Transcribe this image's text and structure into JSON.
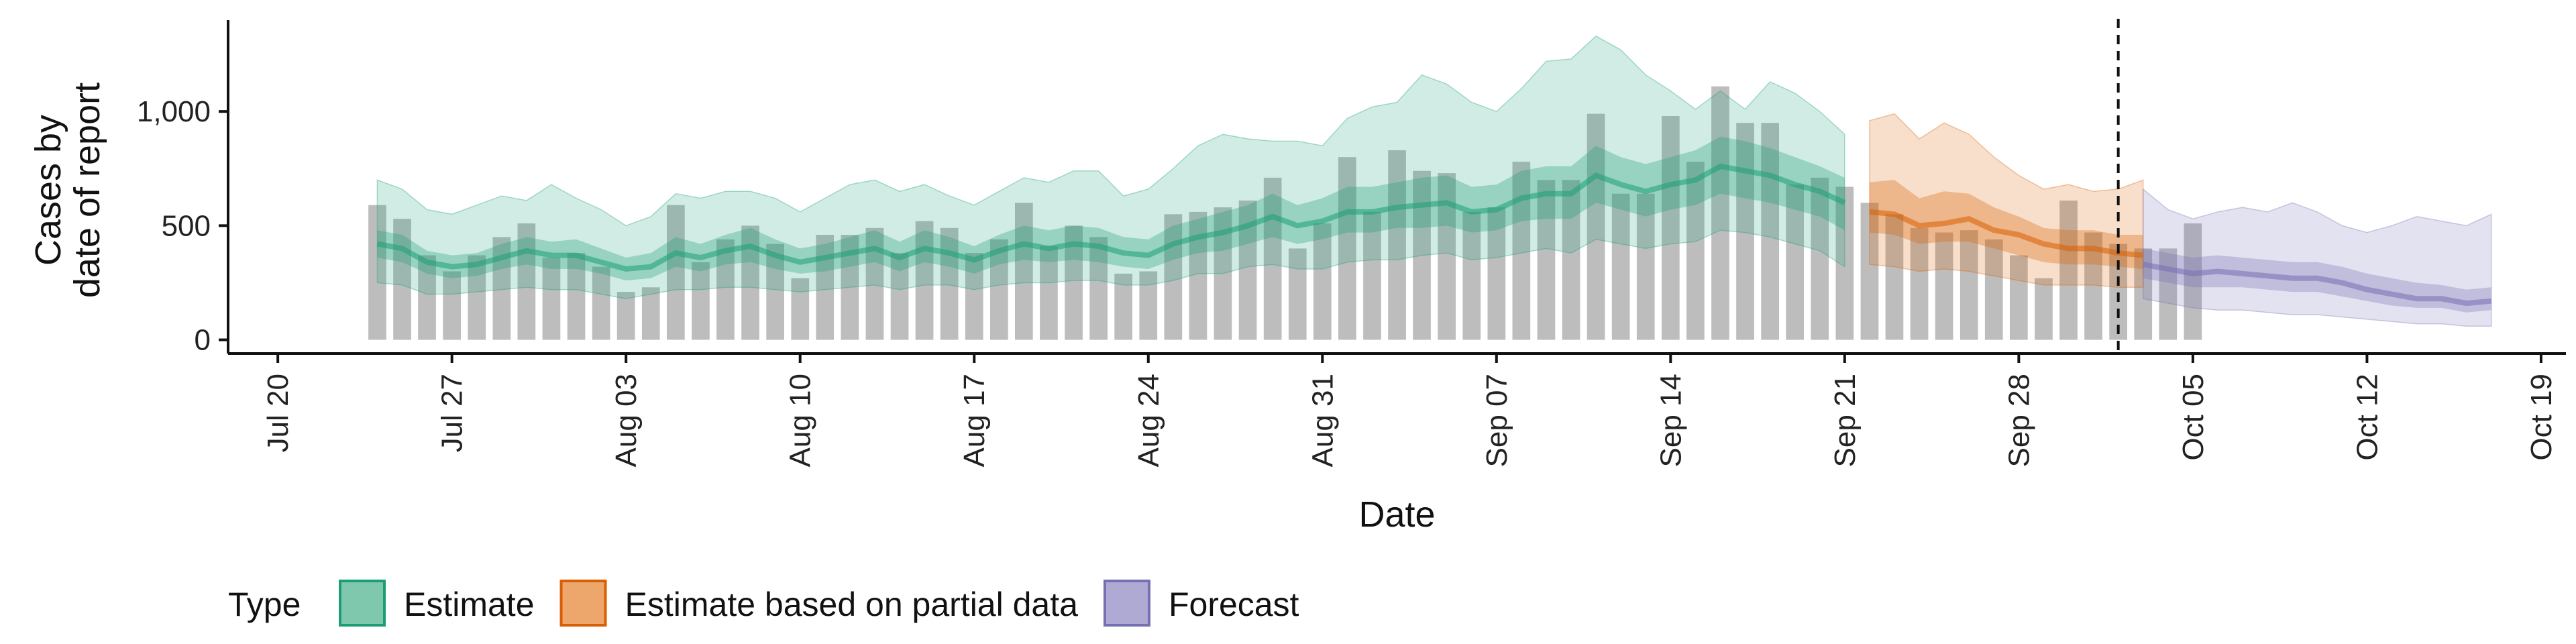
{
  "chart_data": {
    "type": "bar",
    "xlabel": "Date",
    "ylabel": [
      "Cases by",
      "date of report"
    ],
    "x_range": [
      "2020-07-18",
      "2020-10-20"
    ],
    "ylim": [
      -60,
      1400
    ],
    "x_ticks": [
      {
        "date": "2020-07-20",
        "label": "Jul 20"
      },
      {
        "date": "2020-07-27",
        "label": "Jul 27"
      },
      {
        "date": "2020-08-03",
        "label": "Aug 03"
      },
      {
        "date": "2020-08-10",
        "label": "Aug 10"
      },
      {
        "date": "2020-08-17",
        "label": "Aug 17"
      },
      {
        "date": "2020-08-24",
        "label": "Aug 24"
      },
      {
        "date": "2020-08-31",
        "label": "Aug 31"
      },
      {
        "date": "2020-09-07",
        "label": "Sep 07"
      },
      {
        "date": "2020-09-14",
        "label": "Sep 14"
      },
      {
        "date": "2020-09-21",
        "label": "Sep 21"
      },
      {
        "date": "2020-09-28",
        "label": "Sep 28"
      },
      {
        "date": "2020-10-05",
        "label": "Oct 05"
      },
      {
        "date": "2020-10-12",
        "label": "Oct 12"
      },
      {
        "date": "2020-10-19",
        "label": "Oct 19"
      }
    ],
    "y_ticks": [
      {
        "value": 0,
        "label": "0"
      },
      {
        "value": 500,
        "label": "500"
      },
      {
        "value": 1000,
        "label": "1,000"
      }
    ],
    "vline_date": "2020-10-02",
    "bars": {
      "start_date": "2020-07-24",
      "values": [
        590,
        530,
        370,
        300,
        370,
        450,
        510,
        360,
        380,
        320,
        210,
        230,
        590,
        340,
        440,
        500,
        420,
        270,
        460,
        460,
        490,
        380,
        520,
        490,
        380,
        440,
        600,
        410,
        500,
        450,
        290,
        300,
        550,
        560,
        580,
        610,
        710,
        400,
        510,
        800,
        560,
        830,
        740,
        730,
        560,
        580,
        780,
        700,
        700,
        990,
        640,
        640,
        980,
        780,
        1110,
        950,
        950,
        680,
        710,
        670,
        600,
        550,
        490,
        470,
        480,
        440,
        370,
        270,
        610,
        470,
        420,
        400,
        400,
        510
      ]
    },
    "legend": {
      "title": "Type",
      "items": [
        {
          "label": "Estimate",
          "fill": "#7fc8ad",
          "stroke": "#1b9e77"
        },
        {
          "label": "Estimate based on partial data",
          "fill": "#eda66b",
          "stroke": "#d95f02"
        },
        {
          "label": "Forecast",
          "fill": "#aeaad3",
          "stroke": "#7570b3"
        }
      ]
    },
    "series": [
      {
        "name": "Estimate",
        "color": "#1b9e77",
        "start_date": "2020-07-24",
        "median": [
          420,
          400,
          340,
          320,
          330,
          360,
          390,
          370,
          370,
          340,
          310,
          320,
          380,
          360,
          390,
          410,
          370,
          340,
          360,
          380,
          400,
          360,
          400,
          380,
          350,
          390,
          420,
          400,
          420,
          410,
          380,
          370,
          420,
          450,
          470,
          500,
          540,
          500,
          520,
          560,
          560,
          580,
          590,
          600,
          560,
          570,
          620,
          640,
          640,
          720,
          680,
          650,
          680,
          700,
          760,
          740,
          720,
          680,
          650,
          600
        ],
        "upper90": [
          700,
          660,
          570,
          550,
          590,
          630,
          610,
          680,
          620,
          570,
          500,
          540,
          640,
          620,
          650,
          650,
          620,
          560,
          620,
          680,
          700,
          650,
          680,
          630,
          590,
          650,
          710,
          690,
          740,
          740,
          630,
          660,
          750,
          850,
          900,
          880,
          870,
          870,
          850,
          970,
          1020,
          1040,
          1160,
          1120,
          1040,
          1000,
          1100,
          1220,
          1230,
          1330,
          1270,
          1160,
          1090,
          1010,
          1090,
          1010,
          1130,
          1080,
          1000,
          900
        ],
        "lower90": [
          250,
          240,
          200,
          200,
          210,
          220,
          230,
          220,
          220,
          200,
          180,
          200,
          220,
          220,
          230,
          230,
          220,
          210,
          220,
          230,
          240,
          220,
          240,
          240,
          220,
          240,
          250,
          250,
          260,
          260,
          240,
          240,
          260,
          290,
          290,
          320,
          330,
          310,
          310,
          340,
          350,
          350,
          370,
          380,
          350,
          360,
          380,
          400,
          380,
          440,
          420,
          400,
          420,
          430,
          480,
          470,
          450,
          420,
          390,
          320
        ],
        "upper50": [
          480,
          460,
          390,
          370,
          380,
          420,
          450,
          430,
          440,
          400,
          360,
          380,
          450,
          420,
          460,
          490,
          440,
          400,
          420,
          450,
          480,
          430,
          480,
          450,
          410,
          460,
          500,
          480,
          500,
          490,
          450,
          440,
          500,
          530,
          560,
          590,
          640,
          590,
          620,
          670,
          670,
          690,
          710,
          720,
          670,
          680,
          740,
          760,
          760,
          850,
          800,
          770,
          800,
          830,
          890,
          870,
          840,
          800,
          760,
          710
        ],
        "lower50": [
          360,
          340,
          290,
          270,
          280,
          310,
          330,
          310,
          310,
          290,
          260,
          270,
          320,
          300,
          330,
          340,
          310,
          290,
          300,
          320,
          340,
          300,
          340,
          320,
          290,
          330,
          350,
          340,
          350,
          340,
          320,
          310,
          350,
          380,
          390,
          420,
          450,
          420,
          440,
          470,
          470,
          490,
          490,
          500,
          470,
          480,
          520,
          530,
          530,
          600,
          570,
          540,
          570,
          590,
          640,
          620,
          600,
          570,
          540,
          480
        ]
      },
      {
        "name": "Estimate based on partial data",
        "color": "#d95f02",
        "start_date": "2020-09-22",
        "median": [
          560,
          550,
          500,
          510,
          530,
          480,
          460,
          420,
          400,
          400,
          380,
          370
        ],
        "upper90": [
          960,
          990,
          880,
          950,
          900,
          800,
          720,
          660,
          680,
          650,
          660,
          700
        ],
        "lower90": [
          330,
          320,
          300,
          310,
          300,
          280,
          260,
          240,
          240,
          240,
          230,
          230
        ],
        "upper50": [
          690,
          700,
          620,
          650,
          640,
          580,
          540,
          490,
          480,
          480,
          460,
          460
        ],
        "lower50": [
          470,
          460,
          420,
          430,
          430,
          400,
          370,
          340,
          330,
          330,
          320,
          310
        ]
      },
      {
        "name": "Forecast",
        "color": "#7570b3",
        "start_date": "2020-10-03",
        "median": [
          330,
          310,
          290,
          300,
          290,
          280,
          270,
          270,
          250,
          220,
          200,
          180,
          180,
          160,
          170
        ],
        "upper90": [
          660,
          570,
          530,
          560,
          580,
          560,
          600,
          560,
          500,
          470,
          500,
          540,
          520,
          500,
          550
        ],
        "lower90": [
          180,
          160,
          140,
          130,
          130,
          120,
          110,
          110,
          100,
          90,
          80,
          70,
          70,
          60,
          60
        ],
        "upper50": [
          400,
          380,
          360,
          370,
          360,
          350,
          340,
          340,
          320,
          290,
          270,
          250,
          240,
          220,
          230
        ],
        "lower50": [
          270,
          250,
          230,
          230,
          230,
          220,
          210,
          210,
          190,
          170,
          150,
          140,
          140,
          120,
          130
        ]
      }
    ]
  }
}
